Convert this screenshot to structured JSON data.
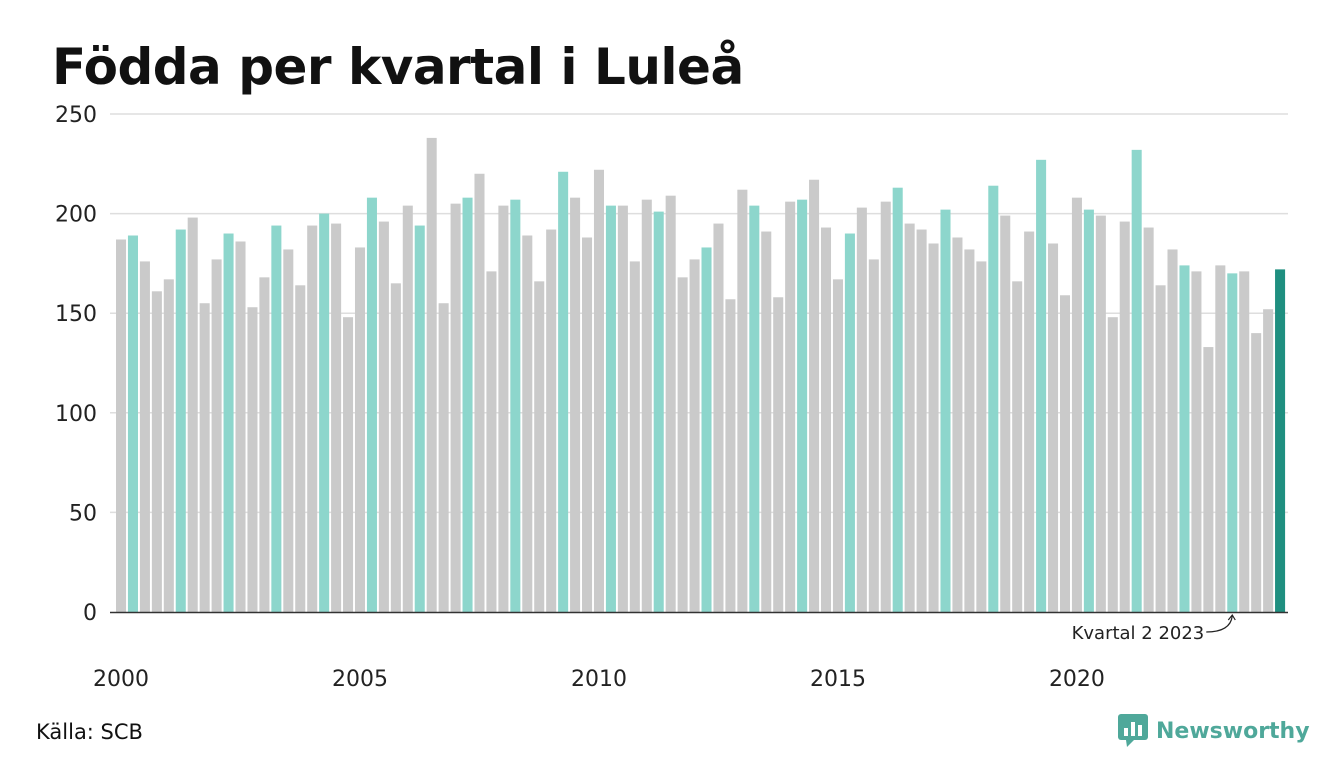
{
  "title": "Födda per kvartal i Luleå",
  "source": "Källa: SCB",
  "brand": "Newsworthy",
  "colors": {
    "highlight": "#8dd6cc",
    "other": "#cacaca",
    "latest": "#1f8f80",
    "brand": "#4fa89a"
  },
  "chart_data": {
    "type": "bar",
    "ylim": [
      0,
      250
    ],
    "yticks": [
      0,
      50,
      100,
      150,
      200,
      250
    ],
    "grid": true,
    "xtick_labels": [
      "2000",
      "2005",
      "2010",
      "2015",
      "2020"
    ],
    "annotation": "Kvartal 2 2023",
    "values": [
      187,
      189,
      176,
      161,
      167,
      192,
      198,
      155,
      177,
      190,
      186,
      153,
      168,
      194,
      182,
      164,
      194,
      200,
      195,
      148,
      183,
      208,
      196,
      165,
      204,
      194,
      238,
      155,
      205,
      208,
      220,
      171,
      204,
      207,
      189,
      166,
      192,
      221,
      208,
      188,
      222,
      204,
      204,
      176,
      207,
      201,
      209,
      168,
      177,
      183,
      195,
      157,
      212,
      204,
      191,
      158,
      206,
      207,
      217,
      193,
      167,
      190,
      203,
      177,
      206,
      213,
      195,
      192,
      185,
      202,
      188,
      182,
      176,
      214,
      199,
      166,
      191,
      227,
      185,
      159,
      208,
      202,
      199,
      148,
      196,
      232,
      193,
      164,
      182,
      174,
      171,
      133,
      174,
      170,
      171,
      140,
      152,
      172
    ]
  }
}
